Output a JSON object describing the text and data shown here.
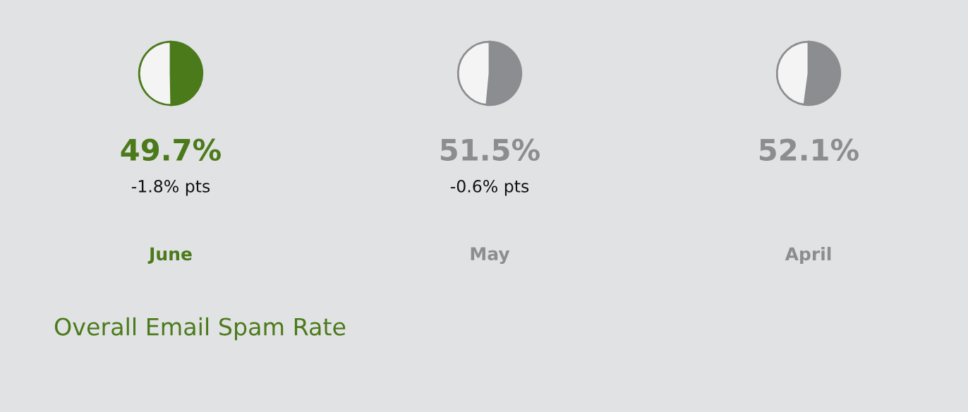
{
  "chart_data": [
    {
      "type": "pie",
      "categories": [
        null,
        null
      ],
      "values": [
        49.7,
        50.3
      ],
      "colors": [
        "#4b7a1a",
        "#f4f4f4"
      ],
      "value_labels": [
        "49.7%",
        null
      ],
      "subtitle": "-1.8% pts",
      "xlabel": "June"
    },
    {
      "type": "pie",
      "categories": [
        null,
        null
      ],
      "values": [
        51.5,
        48.5
      ],
      "colors": [
        "#8c8d90",
        "#f4f4f4"
      ],
      "value_labels": [
        "51.5%",
        null
      ],
      "subtitle": "-0.6% pts",
      "xlabel": "May"
    },
    {
      "type": "pie",
      "categories": [
        null,
        null
      ],
      "values": [
        52.1,
        47.9
      ],
      "colors": [
        "#8c8d90",
        "#f4f4f4"
      ],
      "value_labels": [
        "52.1%",
        null
      ],
      "xlabel": "April"
    },
    {
      "type": "other",
      "title": "Overall Email Spam Rate"
    }
  ]
}
